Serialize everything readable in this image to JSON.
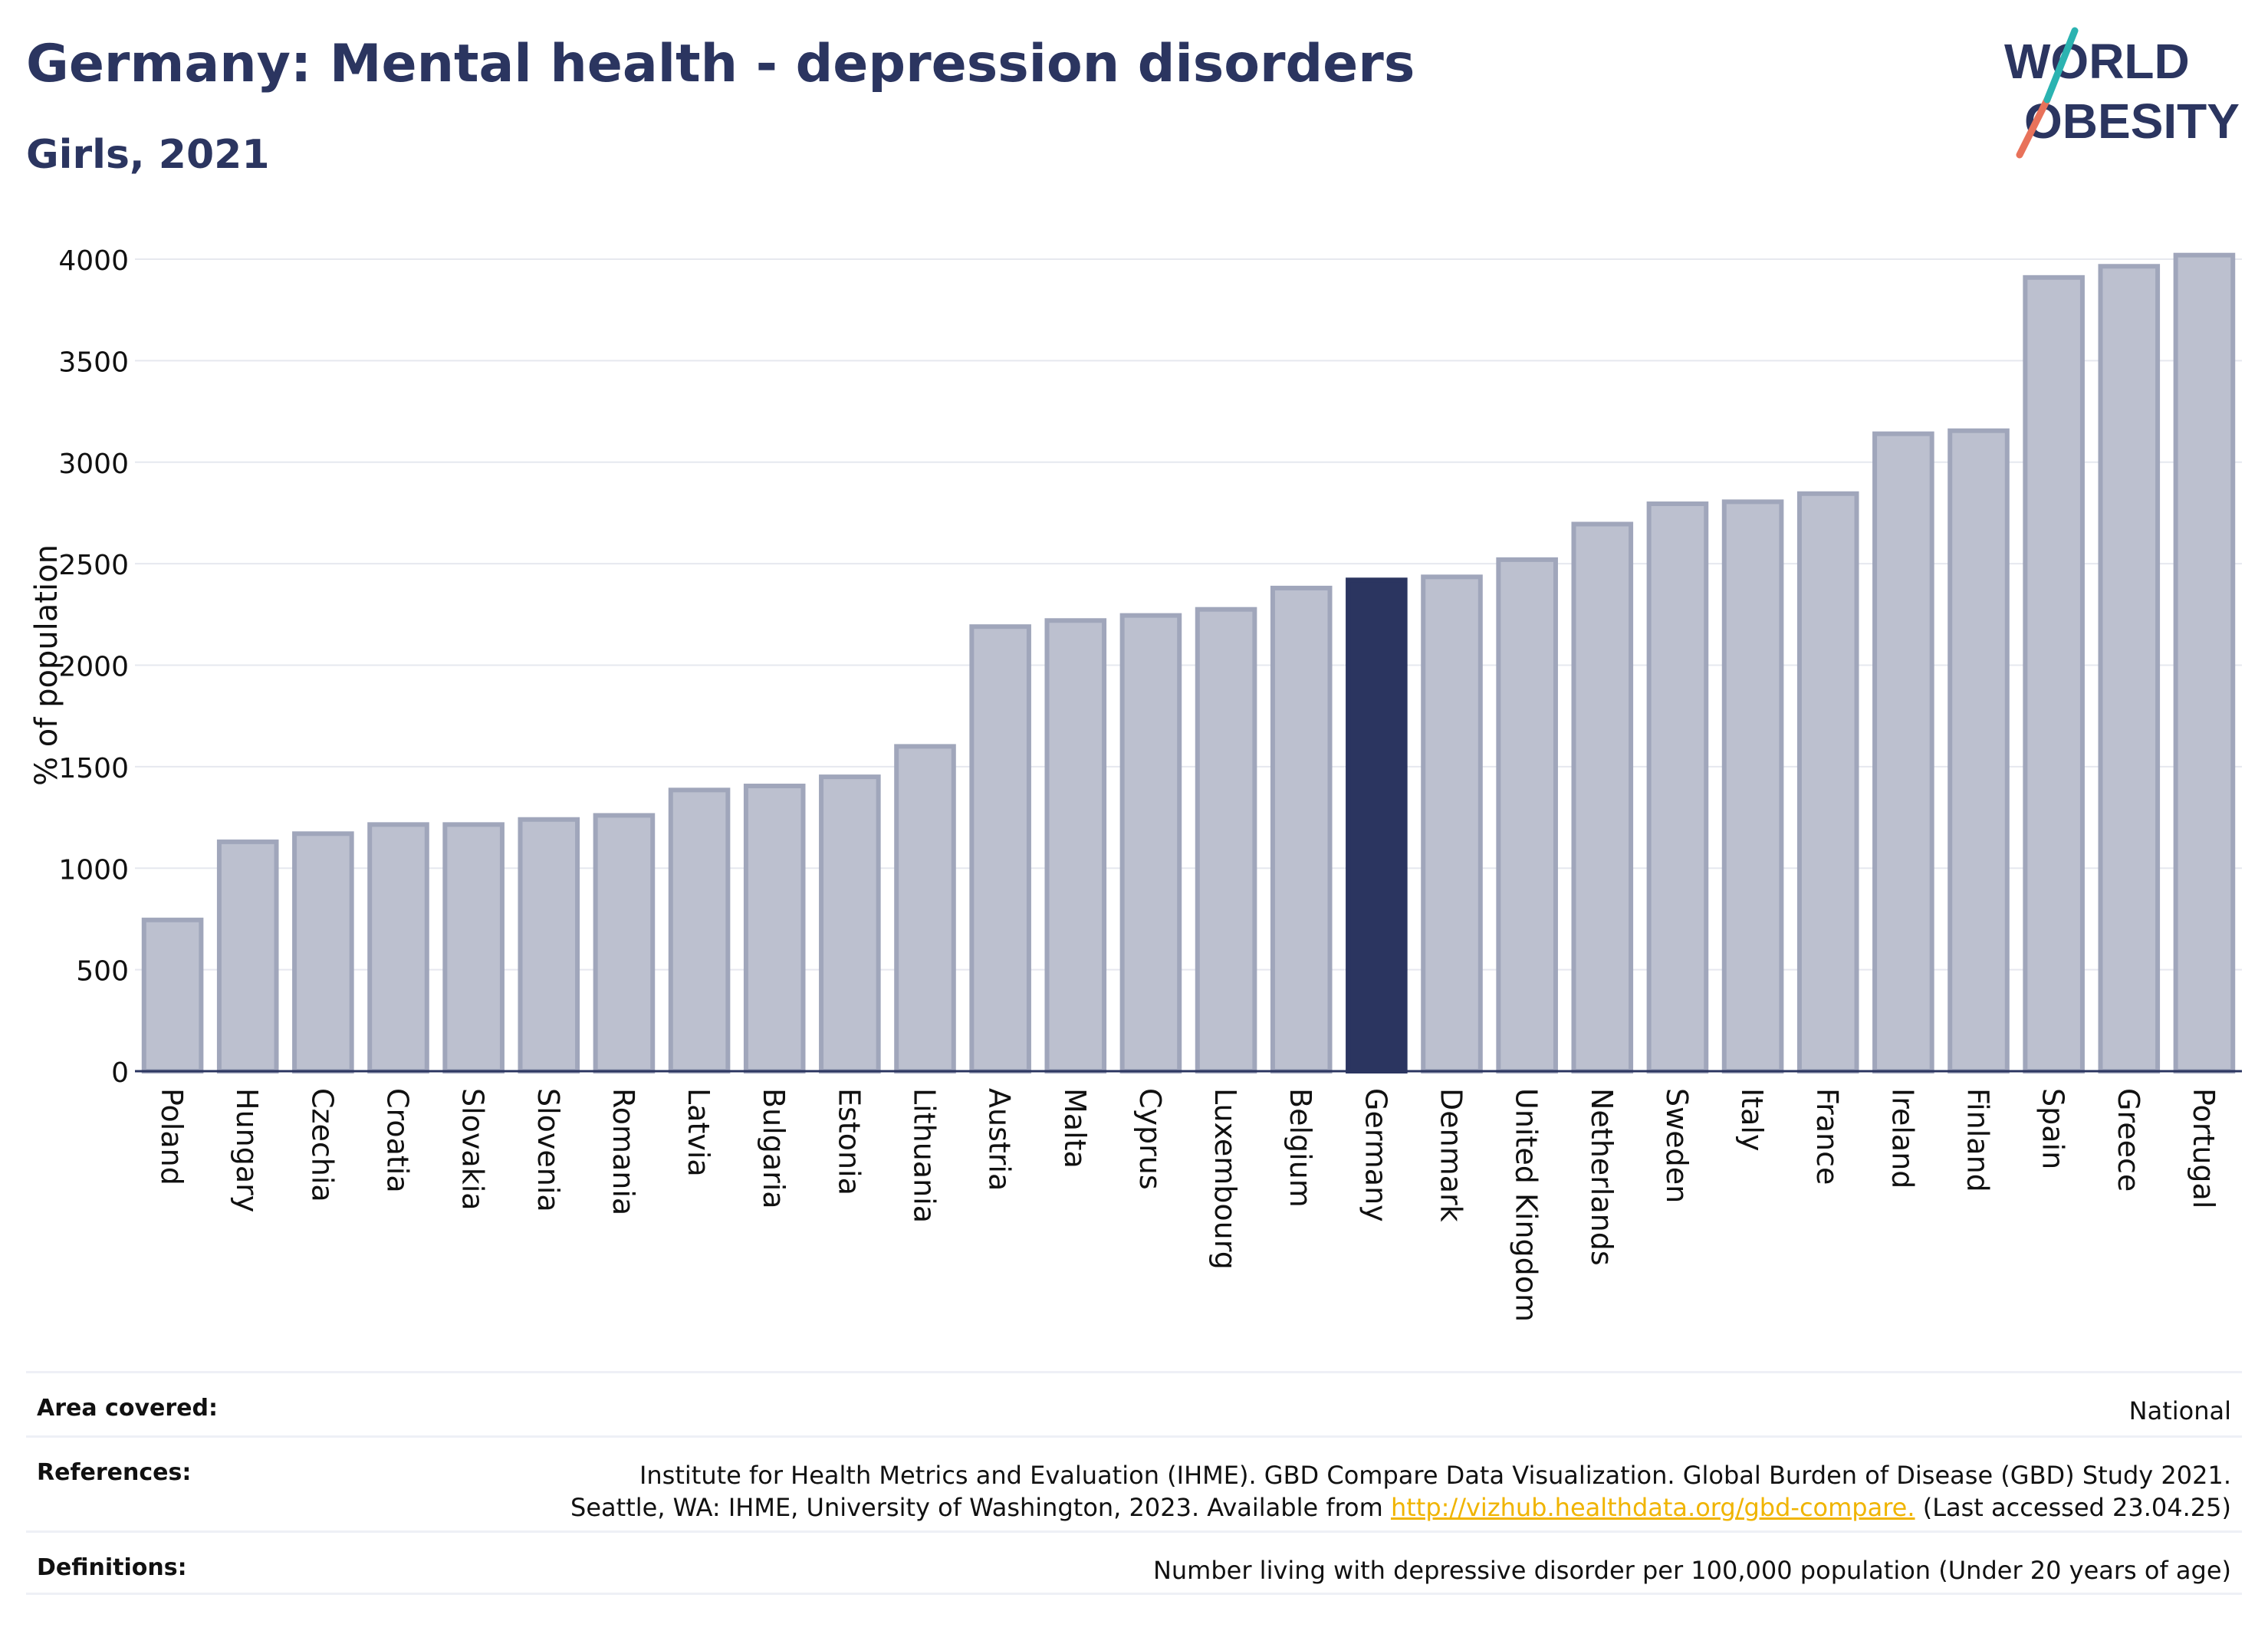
{
  "header": {
    "title": "Germany: Mental health - depression disorders",
    "subtitle": "Girls, 2021"
  },
  "logo": {
    "line1": "WORLD",
    "line2": "OBESITY"
  },
  "chart_data": {
    "type": "bar",
    "title": "Germany: Mental health - depression disorders",
    "subtitle": "Girls, 2021",
    "xlabel": "",
    "ylabel": "% of population",
    "ylim": [
      0,
      4000
    ],
    "yticks": [
      0,
      500,
      1000,
      1500,
      2000,
      2500,
      3000,
      3500,
      4000
    ],
    "grid": true,
    "highlight": "Germany",
    "colors": {
      "bar": "#bcc0cf",
      "bar_border": "#a0a6bb",
      "highlight": "#2b3560",
      "grid": "#e6e8ef",
      "axis": "#2b3560"
    },
    "categories": [
      "Poland",
      "Hungary",
      "Czechia",
      "Croatia",
      "Slovakia",
      "Slovenia",
      "Romania",
      "Latvia",
      "Bulgaria",
      "Estonia",
      "Lithuania",
      "Austria",
      "Malta",
      "Cyprus",
      "Luxembourg",
      "Belgium",
      "Germany",
      "Denmark",
      "United Kingdom",
      "Netherlands",
      "Sweden",
      "Italy",
      "France",
      "Ireland",
      "Finland",
      "Spain",
      "Greece",
      "Portugal"
    ],
    "values": [
      745,
      1130,
      1170,
      1215,
      1215,
      1240,
      1260,
      1385,
      1405,
      1450,
      1600,
      2190,
      2220,
      2245,
      2275,
      2380,
      2420,
      2435,
      2520,
      2695,
      2795,
      2805,
      2845,
      3140,
      3155,
      3910,
      3965,
      4020
    ]
  },
  "info": {
    "area_label": "Area covered:",
    "area_value": "National",
    "references_label": "References:",
    "references_line1": "Institute for Health Metrics and Evaluation (IHME). GBD Compare Data Visualization. Global Burden of Disease (GBD) Study 2021.",
    "references_line2_prefix": "Seattle, WA: IHME, University of Washington, 2023. Available from ",
    "references_link": "http://vizhub.healthdata.org/gbd-compare.",
    "references_line2_suffix": " (Last accessed 23.04.25)",
    "definitions_label": "Definitions:",
    "definitions_value": "Number living with depressive disorder per 100,000 population (Under 20 years of age)"
  }
}
